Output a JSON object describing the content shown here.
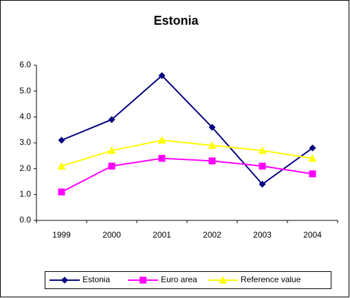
{
  "chart_data": {
    "type": "line",
    "title": "Estonia",
    "categories": [
      "1999",
      "2000",
      "2001",
      "2002",
      "2003",
      "2004"
    ],
    "series": [
      {
        "name": "Estonia",
        "color": "#000080",
        "marker": "diamond",
        "values": [
          3.1,
          3.9,
          5.6,
          3.6,
          1.4,
          2.8
        ]
      },
      {
        "name": "Euro area",
        "color": "#FF00FF",
        "marker": "square",
        "values": [
          1.1,
          2.1,
          2.4,
          2.3,
          2.1,
          1.8
        ]
      },
      {
        "name": "Reference value",
        "color": "#FFFF00",
        "marker": "triangle",
        "values": [
          2.1,
          2.7,
          3.1,
          2.9,
          2.7,
          2.4
        ]
      }
    ],
    "ylim": [
      0,
      6
    ],
    "yticks": [
      {
        "value": 0,
        "label": "0.0"
      },
      {
        "value": 1,
        "label": "1.0"
      },
      {
        "value": 2,
        "label": "2.0"
      },
      {
        "value": 3,
        "label": "3.0"
      },
      {
        "value": 4,
        "label": "4.0"
      },
      {
        "value": 5,
        "label": "5.0"
      },
      {
        "value": 6,
        "label": "6.0"
      }
    ],
    "legend": "bottom"
  }
}
